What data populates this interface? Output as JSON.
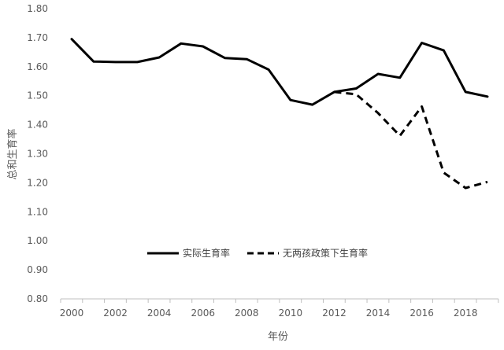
{
  "chart_data": {
    "type": "line",
    "title": "",
    "xlabel": "年份",
    "ylabel": "总和生育率",
    "xlim": [
      2000,
      2019
    ],
    "ylim": [
      0.8,
      1.8
    ],
    "x_ticks": [
      "2000",
      "2002",
      "2004",
      "2006",
      "2008",
      "2010",
      "2012",
      "2014",
      "2016",
      "2018"
    ],
    "y_ticks": [
      "0.80",
      "0.90",
      "1.00",
      "1.10",
      "1.20",
      "1.30",
      "1.40",
      "1.50",
      "1.60",
      "1.70",
      "1.80"
    ],
    "grid": false,
    "legend_position": "bottom-center",
    "series": [
      {
        "name": "实际生育率",
        "style": "solid",
        "color": "#000000",
        "x": [
          2000,
          2001,
          2002,
          2003,
          2004,
          2005,
          2006,
          2007,
          2008,
          2009,
          2010,
          2011,
          2012,
          2013,
          2014,
          2015,
          2016,
          2017,
          2018,
          2019
        ],
        "values": [
          1.695,
          1.618,
          1.616,
          1.616,
          1.632,
          1.68,
          1.67,
          1.63,
          1.626,
          1.59,
          1.485,
          1.469,
          1.513,
          1.525,
          1.575,
          1.562,
          1.682,
          1.656,
          1.513,
          1.497
        ]
      },
      {
        "name": "无两孩政策下生育率",
        "style": "dashed",
        "color": "#000000",
        "x": [
          2012,
          2013,
          2014,
          2015,
          2016,
          2017,
          2018,
          2019
        ],
        "values": [
          1.513,
          1.505,
          1.44,
          1.362,
          1.463,
          1.235,
          1.182,
          1.203
        ]
      }
    ]
  }
}
